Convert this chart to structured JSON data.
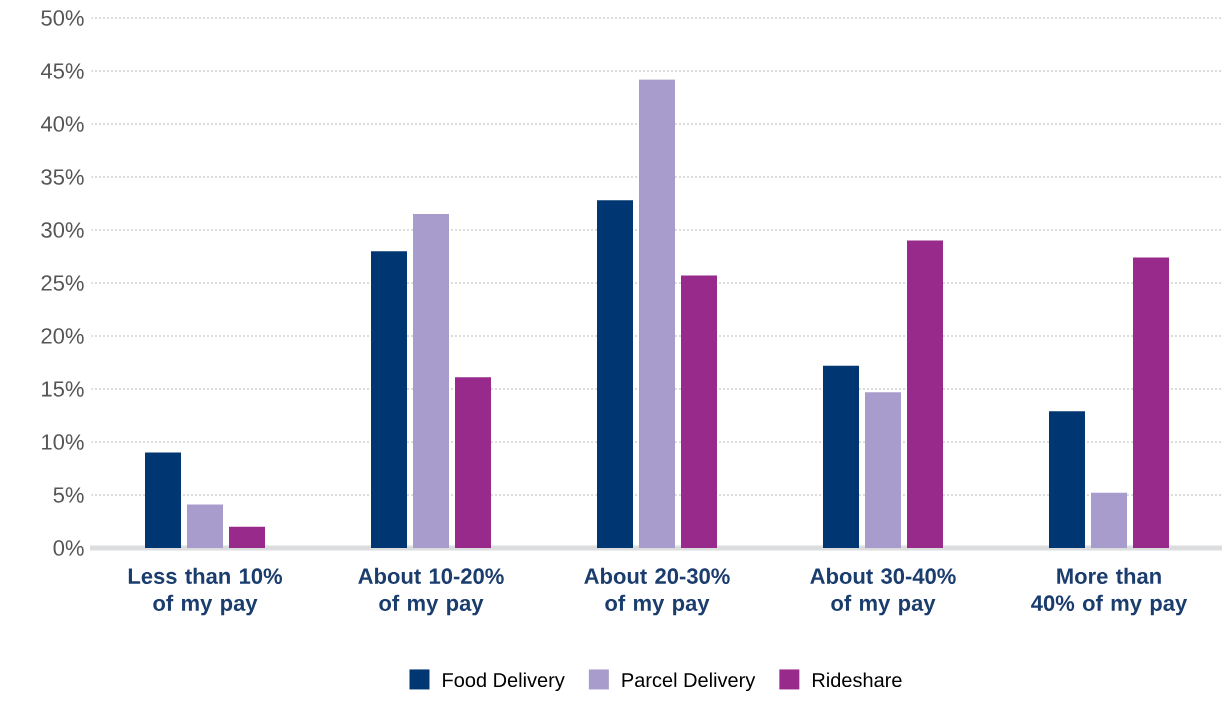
{
  "chart_data": {
    "type": "bar",
    "categories": [
      "Less than 10% of my pay",
      "About 10-20% of my pay",
      "About 20-30% of my pay",
      "About 30-40% of my pay",
      "More than 40% of my pay"
    ],
    "series": [
      {
        "name": "Food Delivery",
        "color": "#003671",
        "values": [
          9,
          28,
          32.8,
          17.2,
          12.9
        ]
      },
      {
        "name": "Parcel Delivery",
        "color": "#a89ccd",
        "values": [
          4.1,
          31.5,
          44.2,
          14.7,
          5.2
        ]
      },
      {
        "name": "Rideshare",
        "color": "#982a8c",
        "values": [
          2,
          16.1,
          25.7,
          29,
          27.4
        ]
      }
    ],
    "ylim": [
      0,
      50
    ],
    "yticks": [
      {
        "value": 0,
        "label": "0%"
      },
      {
        "value": 5,
        "label": "5%"
      },
      {
        "value": 10,
        "label": "10%"
      },
      {
        "value": 15,
        "label": "15%"
      },
      {
        "value": 20,
        "label": "20%"
      },
      {
        "value": 25,
        "label": "25%"
      },
      {
        "value": 30,
        "label": "30%"
      },
      {
        "value": 35,
        "label": "35%"
      },
      {
        "value": 40,
        "label": "40%"
      },
      {
        "value": 45,
        "label": "45%"
      },
      {
        "value": 50,
        "label": "50%"
      }
    ],
    "grid": "y",
    "legend": "bottom"
  }
}
